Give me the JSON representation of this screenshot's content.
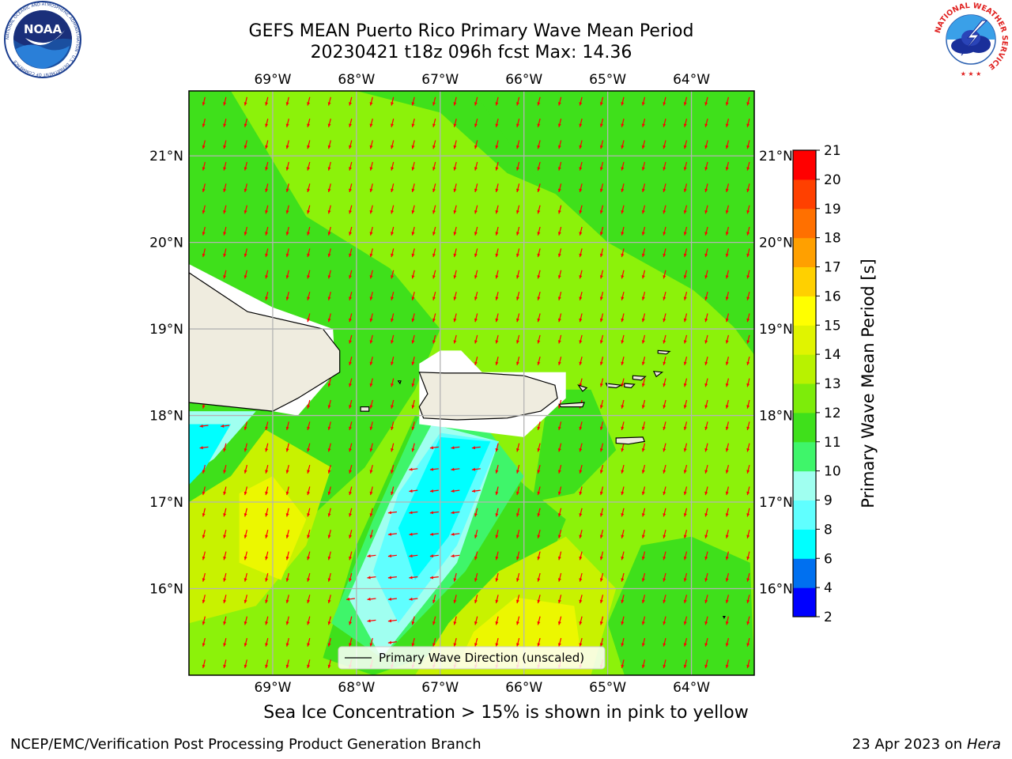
{
  "title": {
    "line1": "GEFS MEAN Puerto Rico Primary Wave Mean Period",
    "line2": "20230421 t18z 096h fcst   Max: 14.36"
  },
  "logos": {
    "left": {
      "name": "noaa-logo",
      "text": "NOAA",
      "ring_text": "NATIONAL OCEANIC AND ATMOSPHERIC ADMINISTRATION · U.S. DEPARTMENT OF COMMERCE"
    },
    "right": {
      "name": "nws-logo",
      "ring_text": "NATIONAL WEATHER SERVICE"
    }
  },
  "note": "Sea Ice Concentration > 15% is shown in pink to yellow",
  "footer": {
    "left": "NCEP/EMC/Verification Post Processing Product Generation Branch",
    "right_date": "23 Apr 2023 on ",
    "right_host": "Hera"
  },
  "colors": {
    "field_base": "#3fe01b",
    "arrow": "#ff0000",
    "land": "#efecdf",
    "grid": "#b4b4b4"
  },
  "chart_data": {
    "type": "heatmap",
    "variable": "Primary Wave Mean Period",
    "units": "s",
    "max": 14.36,
    "lon_ticks": [
      "69°W",
      "68°W",
      "67°W",
      "66°W",
      "65°W",
      "64°W"
    ],
    "lon_values": [
      -69,
      -68,
      -67,
      -66,
      -65,
      -64
    ],
    "lat_ticks": [
      "21°N",
      "20°N",
      "19°N",
      "18°N",
      "17°N",
      "16°N"
    ],
    "lat_values": [
      21,
      20,
      19,
      18,
      17,
      16
    ],
    "lon_range": [
      -70.0,
      -63.25
    ],
    "lat_range": [
      15.0,
      21.75
    ],
    "grid": true,
    "legend": {
      "label": "Primary Wave Direction (unscaled)",
      "placement": "lower center"
    },
    "colorbar": {
      "label": "Primary Wave Mean Period [s]",
      "ticks": [
        2,
        4,
        6,
        8,
        9,
        10,
        11,
        12,
        13,
        14,
        15,
        16,
        17,
        18,
        19,
        20,
        21
      ],
      "colors": [
        "#0000ff",
        "#0070f0",
        "#00ffff",
        "#60ffff",
        "#a0fff0",
        "#3ff56a",
        "#3fe01b",
        "#7dec0a",
        "#b8f200",
        "#e0f400",
        "#ffff00",
        "#ffd000",
        "#ffa000",
        "#ff7000",
        "#ff4000",
        "#ff0000"
      ]
    },
    "field_regions": [
      {
        "period_class": "12-13",
        "lon_lat": [
          [
            -69.4,
            21.75
          ],
          [
            -68.0,
            21.75
          ],
          [
            -67.0,
            21.5
          ],
          [
            -66.2,
            20.8
          ],
          [
            -65.0,
            20.3
          ],
          [
            -63.8,
            19.3
          ],
          [
            -63.25,
            18.8
          ],
          [
            -63.25,
            15.0
          ],
          [
            -70.0,
            15.0
          ],
          [
            -70.0,
            21.75
          ]
        ]
      },
      {
        "period_class": "11-12",
        "lon_lat": [
          [
            -66.6,
            21.75
          ],
          [
            -63.25,
            21.75
          ],
          [
            -63.25,
            18.7
          ],
          [
            -63.7,
            19.3
          ],
          [
            -65.0,
            20.0
          ],
          [
            -66.0,
            20.9
          ]
        ]
      },
      {
        "period_class": "11-12",
        "lon_lat": [
          [
            -70.0,
            21.75
          ],
          [
            -69.5,
            21.75
          ],
          [
            -68.6,
            20.3
          ],
          [
            -67.6,
            19.7
          ],
          [
            -67.0,
            19.0
          ],
          [
            -67.3,
            18.3
          ],
          [
            -67.9,
            17.4
          ],
          [
            -68.8,
            16.6
          ],
          [
            -70.0,
            16.3
          ]
        ]
      },
      {
        "period_class": "11-12",
        "lon_lat": [
          [
            -65.7,
            18.3
          ],
          [
            -65.2,
            18.3
          ],
          [
            -64.9,
            17.6
          ],
          [
            -65.4,
            17.1
          ],
          [
            -65.9,
            17.0
          ]
        ]
      },
      {
        "period_class": "11-12",
        "lon_lat": [
          [
            -64.6,
            16.5
          ],
          [
            -64.0,
            16.6
          ],
          [
            -63.3,
            16.3
          ],
          [
            -63.25,
            15.0
          ],
          [
            -64.8,
            15.0
          ],
          [
            -65.0,
            15.6
          ]
        ]
      },
      {
        "period_class": "11-12",
        "lon_lat": [
          [
            -67.3,
            18.0
          ],
          [
            -66.5,
            17.7
          ],
          [
            -66.0,
            17.2
          ],
          [
            -65.5,
            16.8
          ],
          [
            -66.0,
            15.6
          ],
          [
            -67.8,
            15.0
          ],
          [
            -68.4,
            15.2
          ],
          [
            -68.0,
            16.5
          ]
        ]
      },
      {
        "period_class": "13-14",
        "lon_lat": [
          [
            -70.0,
            17.6
          ],
          [
            -69.2,
            17.9
          ],
          [
            -68.3,
            17.4
          ],
          [
            -68.6,
            16.5
          ],
          [
            -69.2,
            15.8
          ],
          [
            -70.0,
            15.6
          ]
        ]
      },
      {
        "period_class": "14-15",
        "lon_lat": [
          [
            -69.4,
            17.1
          ],
          [
            -69.0,
            17.3
          ],
          [
            -68.6,
            16.8
          ],
          [
            -68.9,
            16.1
          ],
          [
            -69.4,
            16.3
          ]
        ]
      },
      {
        "period_class": "13-14",
        "lon_lat": [
          [
            -66.9,
            15.6
          ],
          [
            -66.3,
            16.2
          ],
          [
            -65.5,
            16.6
          ],
          [
            -64.9,
            16.0
          ],
          [
            -65.2,
            15.0
          ],
          [
            -67.3,
            15.0
          ]
        ]
      },
      {
        "period_class": "14-15",
        "lon_lat": [
          [
            -66.6,
            15.5
          ],
          [
            -66.1,
            15.9
          ],
          [
            -65.4,
            15.8
          ],
          [
            -65.3,
            15.1
          ],
          [
            -66.8,
            15.1
          ]
        ]
      },
      {
        "period_class": "10-11",
        "lon_lat": [
          [
            -67.2,
            18.1
          ],
          [
            -66.4,
            17.8
          ],
          [
            -66.0,
            17.3
          ],
          [
            -66.7,
            16.2
          ],
          [
            -67.7,
            15.2
          ],
          [
            -68.3,
            15.6
          ],
          [
            -67.8,
            16.8
          ]
        ]
      },
      {
        "period_class": "9-10",
        "lon_lat": [
          [
            -67.1,
            17.9
          ],
          [
            -66.3,
            17.7
          ],
          [
            -66.8,
            16.3
          ],
          [
            -67.7,
            15.2
          ],
          [
            -68.1,
            15.9
          ],
          [
            -67.6,
            17.0
          ]
        ]
      },
      {
        "period_class": "8-9",
        "lon_lat": [
          [
            -67.0,
            17.8
          ],
          [
            -66.3,
            17.7
          ],
          [
            -66.8,
            16.5
          ],
          [
            -67.5,
            15.6
          ],
          [
            -67.8,
            16.2
          ],
          [
            -67.5,
            17.1
          ]
        ]
      },
      {
        "period_class": "6-8",
        "lon_lat": [
          [
            -67.0,
            17.75
          ],
          [
            -66.4,
            17.7
          ],
          [
            -66.9,
            16.6
          ],
          [
            -67.3,
            16.1
          ],
          [
            -67.5,
            16.7
          ]
        ]
      },
      {
        "period_class": "11-12",
        "lon_lat": [
          [
            -70.0,
            18.1
          ],
          [
            -68.8,
            18.2
          ],
          [
            -69.5,
            17.3
          ],
          [
            -70.0,
            17.0
          ]
        ]
      },
      {
        "period_class": "9-10",
        "lon_lat": [
          [
            -70.0,
            18.05
          ],
          [
            -69.2,
            18.05
          ],
          [
            -69.7,
            17.5
          ],
          [
            -70.0,
            17.3
          ]
        ]
      },
      {
        "period_class": "6-8",
        "lon_lat": [
          [
            -70.0,
            17.9
          ],
          [
            -69.5,
            17.9
          ],
          [
            -69.8,
            17.4
          ],
          [
            -70.0,
            17.2
          ]
        ]
      }
    ],
    "land_regions": [
      {
        "name": "Hispaniola",
        "lon_lat": [
          [
            -70.0,
            19.65
          ],
          [
            -69.3,
            19.2
          ],
          [
            -68.4,
            19.0
          ],
          [
            -68.2,
            18.75
          ],
          [
            -68.2,
            18.5
          ],
          [
            -68.7,
            18.2
          ],
          [
            -69.0,
            18.05
          ],
          [
            -70.0,
            18.15
          ]
        ]
      },
      {
        "name": "Puerto Rico",
        "lon_lat": [
          [
            -67.25,
            18.5
          ],
          [
            -66.95,
            18.49
          ],
          [
            -66.5,
            18.49
          ],
          [
            -66.0,
            18.46
          ],
          [
            -65.63,
            18.35
          ],
          [
            -65.6,
            18.2
          ],
          [
            -65.8,
            18.05
          ],
          [
            -66.2,
            17.97
          ],
          [
            -66.8,
            17.95
          ],
          [
            -67.2,
            17.97
          ],
          [
            -67.25,
            18.1
          ],
          [
            -67.15,
            18.25
          ]
        ]
      }
    ],
    "masked_regions": [
      {
        "lon_lat": [
          [
            -70.0,
            19.75
          ],
          [
            -69.0,
            19.25
          ],
          [
            -68.28,
            19.0
          ],
          [
            -68.25,
            18.5
          ],
          [
            -68.7,
            18.0
          ],
          [
            -69.0,
            18.05
          ],
          [
            -70.0,
            18.15
          ]
        ]
      },
      {
        "lon_lat": [
          [
            -67.25,
            18.6
          ],
          [
            -67.0,
            18.75
          ],
          [
            -66.75,
            18.75
          ],
          [
            -66.5,
            18.5
          ],
          [
            -65.5,
            18.5
          ],
          [
            -65.5,
            18.2
          ],
          [
            -66.0,
            17.75
          ],
          [
            -67.25,
            17.9
          ]
        ]
      }
    ],
    "islands": [
      {
        "name": "Mona",
        "lon_lat": [
          [
            -67.95,
            18.1
          ],
          [
            -67.85,
            18.1
          ],
          [
            -67.85,
            18.05
          ],
          [
            -67.95,
            18.05
          ]
        ]
      },
      {
        "name": "Vieques",
        "lon_lat": [
          [
            -65.58,
            18.13
          ],
          [
            -65.28,
            18.15
          ],
          [
            -65.3,
            18.1
          ],
          [
            -65.56,
            18.1
          ]
        ]
      },
      {
        "name": "Culebra",
        "lon_lat": [
          [
            -65.35,
            18.35
          ],
          [
            -65.25,
            18.32
          ],
          [
            -65.3,
            18.28
          ]
        ]
      },
      {
        "name": "St. Thomas",
        "lon_lat": [
          [
            -65.02,
            18.37
          ],
          [
            -64.84,
            18.35
          ],
          [
            -64.9,
            18.32
          ],
          [
            -65.0,
            18.33
          ]
        ]
      },
      {
        "name": "St. John",
        "lon_lat": [
          [
            -64.8,
            18.37
          ],
          [
            -64.68,
            18.36
          ],
          [
            -64.72,
            18.32
          ],
          [
            -64.8,
            18.33
          ]
        ]
      },
      {
        "name": "Tortola",
        "lon_lat": [
          [
            -64.7,
            18.46
          ],
          [
            -64.55,
            18.45
          ],
          [
            -64.6,
            18.41
          ],
          [
            -64.7,
            18.42
          ]
        ]
      },
      {
        "name": "Virgin Gorda",
        "lon_lat": [
          [
            -64.45,
            18.51
          ],
          [
            -64.35,
            18.5
          ],
          [
            -64.42,
            18.45
          ]
        ]
      },
      {
        "name": "Anegada",
        "lon_lat": [
          [
            -64.4,
            18.75
          ],
          [
            -64.26,
            18.74
          ],
          [
            -64.3,
            18.71
          ],
          [
            -64.4,
            18.72
          ]
        ]
      },
      {
        "name": "St. Croix",
        "lon_lat": [
          [
            -64.9,
            17.74
          ],
          [
            -64.58,
            17.75
          ],
          [
            -64.56,
            17.7
          ],
          [
            -64.75,
            17.67
          ],
          [
            -64.9,
            17.68
          ]
        ]
      },
      {
        "name": "Desecheo",
        "lon_lat": [
          [
            -67.5,
            18.4
          ],
          [
            -67.47,
            18.4
          ],
          [
            -67.48,
            18.37
          ]
        ]
      },
      {
        "name": "Aves",
        "lon_lat": [
          [
            -63.62,
            15.68
          ],
          [
            -63.6,
            15.68
          ],
          [
            -63.61,
            15.66
          ]
        ]
      }
    ],
    "wave_direction": {
      "from": "NNE",
      "arrow_dx": -0.25,
      "arrow_dy": 1.0,
      "blue_region_direction": "E",
      "spacing_deg": 0.25
    }
  }
}
